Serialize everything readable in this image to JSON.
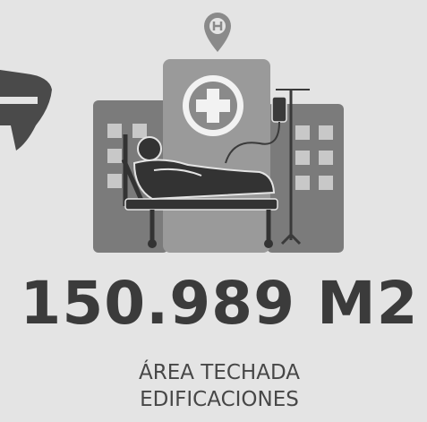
{
  "stat": {
    "value_text": "150.989 M2",
    "caption_lines": [
      "ÁREA TECHADA",
      "EDIFICACIONES"
    ]
  }
}
